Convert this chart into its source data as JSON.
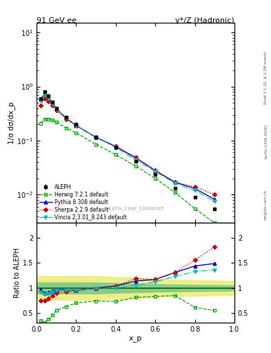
{
  "title_left": "91 GeV ee",
  "title_right": "γ*/Z (Hadronic)",
  "ylabel_main": "1/σ dσ/dx_p",
  "ylabel_ratio": "Ratio to ALEPH",
  "xlabel": "x_p",
  "watermark": "ALEPH_1996_S3486095",
  "rivet_label": "Rivet 3.1.10, ≥ 3.2M events",
  "arxiv_label": "[arXiv:1306.3436]",
  "mcplots_label": "mcplots.cern.ch",
  "aleph_x": [
    0.02,
    0.04,
    0.06,
    0.08,
    0.1,
    0.15,
    0.2,
    0.3,
    0.4,
    0.5,
    0.6,
    0.7,
    0.8,
    0.9
  ],
  "aleph_y": [
    0.6,
    0.8,
    0.68,
    0.52,
    0.4,
    0.27,
    0.2,
    0.115,
    0.075,
    0.042,
    0.024,
    0.013,
    0.009,
    0.0055
  ],
  "aleph_yerr_lo": [
    0.03,
    0.04,
    0.03,
    0.02,
    0.015,
    0.01,
    0.008,
    0.005,
    0.003,
    0.002,
    0.001,
    0.0006,
    0.0004,
    0.0003
  ],
  "aleph_yerr_hi": [
    0.03,
    0.04,
    0.03,
    0.02,
    0.015,
    0.01,
    0.008,
    0.005,
    0.003,
    0.002,
    0.001,
    0.0006,
    0.0004,
    0.0003
  ],
  "herwig_x": [
    0.02,
    0.04,
    0.06,
    0.08,
    0.1,
    0.15,
    0.2,
    0.3,
    0.4,
    0.5,
    0.6,
    0.7,
    0.8,
    0.9
  ],
  "herwig_y": [
    0.21,
    0.25,
    0.25,
    0.24,
    0.22,
    0.17,
    0.14,
    0.085,
    0.055,
    0.034,
    0.02,
    0.011,
    0.0055,
    0.003
  ],
  "pythia_x": [
    0.02,
    0.04,
    0.06,
    0.08,
    0.1,
    0.15,
    0.2,
    0.3,
    0.4,
    0.5,
    0.6,
    0.7,
    0.8,
    0.9
  ],
  "pythia_y": [
    0.58,
    0.72,
    0.62,
    0.49,
    0.39,
    0.26,
    0.19,
    0.115,
    0.078,
    0.048,
    0.028,
    0.017,
    0.013,
    0.0082
  ],
  "sherpa_x": [
    0.02,
    0.04,
    0.06,
    0.08,
    0.1,
    0.15,
    0.2,
    0.3,
    0.4,
    0.5,
    0.6,
    0.7,
    0.8,
    0.9
  ],
  "sherpa_y": [
    0.45,
    0.6,
    0.54,
    0.44,
    0.36,
    0.25,
    0.19,
    0.115,
    0.078,
    0.05,
    0.028,
    0.017,
    0.014,
    0.01
  ],
  "vincia_x": [
    0.02,
    0.04,
    0.06,
    0.08,
    0.1,
    0.15,
    0.2,
    0.3,
    0.4,
    0.5,
    0.6,
    0.7,
    0.8,
    0.9
  ],
  "vincia_y": [
    0.55,
    0.7,
    0.6,
    0.48,
    0.38,
    0.26,
    0.19,
    0.115,
    0.075,
    0.044,
    0.027,
    0.016,
    0.012,
    0.0075
  ],
  "herwig_ratio": [
    0.35,
    0.31,
    0.37,
    0.46,
    0.55,
    0.63,
    0.7,
    0.74,
    0.73,
    0.81,
    0.83,
    0.85,
    0.61,
    0.55
  ],
  "pythia_ratio": [
    0.97,
    0.9,
    0.91,
    0.94,
    0.975,
    0.96,
    0.95,
    1.0,
    1.04,
    1.14,
    1.17,
    1.31,
    1.44,
    1.49
  ],
  "sherpa_ratio": [
    0.75,
    0.75,
    0.79,
    0.85,
    0.9,
    0.925,
    0.95,
    1.0,
    1.04,
    1.19,
    1.17,
    1.31,
    1.56,
    1.82
  ],
  "vincia_ratio": [
    0.92,
    0.875,
    0.88,
    0.92,
    0.95,
    0.96,
    0.95,
    1.0,
    1.0,
    1.05,
    1.125,
    1.23,
    1.33,
    1.36
  ],
  "band_yellow_x": [
    0.0,
    0.3,
    0.3,
    0.65,
    0.65,
    1.0,
    1.0,
    0.65,
    0.65,
    0.3,
    0.3,
    0.0
  ],
  "band_yellow_lo": [
    0.75,
    0.75,
    0.82,
    0.82,
    0.85,
    0.85
  ],
  "band_yellow_hi": [
    1.25,
    1.25,
    1.18,
    1.18,
    1.15,
    1.15
  ],
  "band_yellow_xf": [
    0.0,
    0.3,
    0.65,
    1.0
  ],
  "band_yellow_lof": [
    0.75,
    0.75,
    0.82,
    0.85
  ],
  "band_yellow_hif": [
    1.25,
    1.25,
    1.18,
    1.15
  ],
  "band_green_xf": [
    0.0,
    0.3,
    0.65,
    1.0
  ],
  "band_green_lof": [
    0.88,
    0.88,
    0.92,
    0.94
  ],
  "band_green_hif": [
    1.12,
    1.12,
    1.08,
    1.06
  ],
  "aleph_color": "#000000",
  "herwig_color": "#00aa00",
  "pythia_color": "#0000cc",
  "sherpa_color": "#cc0000",
  "vincia_color": "#00bbbb",
  "ylim_main": [
    0.003,
    15.0
  ],
  "ylim_ratio": [
    0.3,
    2.3
  ],
  "xlim": [
    0.0,
    1.0
  ],
  "yticks_ratio_left": [
    0.5,
    1.0,
    1.5,
    2.0
  ],
  "yticks_ratio_right": [
    0.5,
    1.0,
    1.5,
    2.0
  ]
}
